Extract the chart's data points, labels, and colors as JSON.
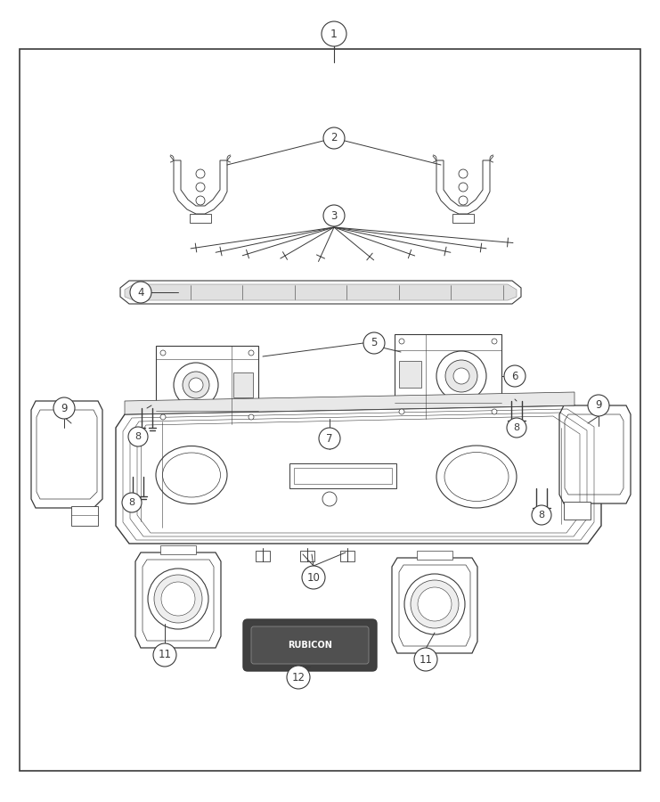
{
  "bg_color": "#ffffff",
  "border_color": "#3a3a3a",
  "line_color": "#3a3a3a",
  "fig_width": 7.41,
  "fig_height": 9.0,
  "dpi": 100,
  "lw_part": 0.8,
  "lw_detail": 0.5,
  "lw_border": 1.2,
  "label_fontsize": 9,
  "circle_r": 0.016
}
